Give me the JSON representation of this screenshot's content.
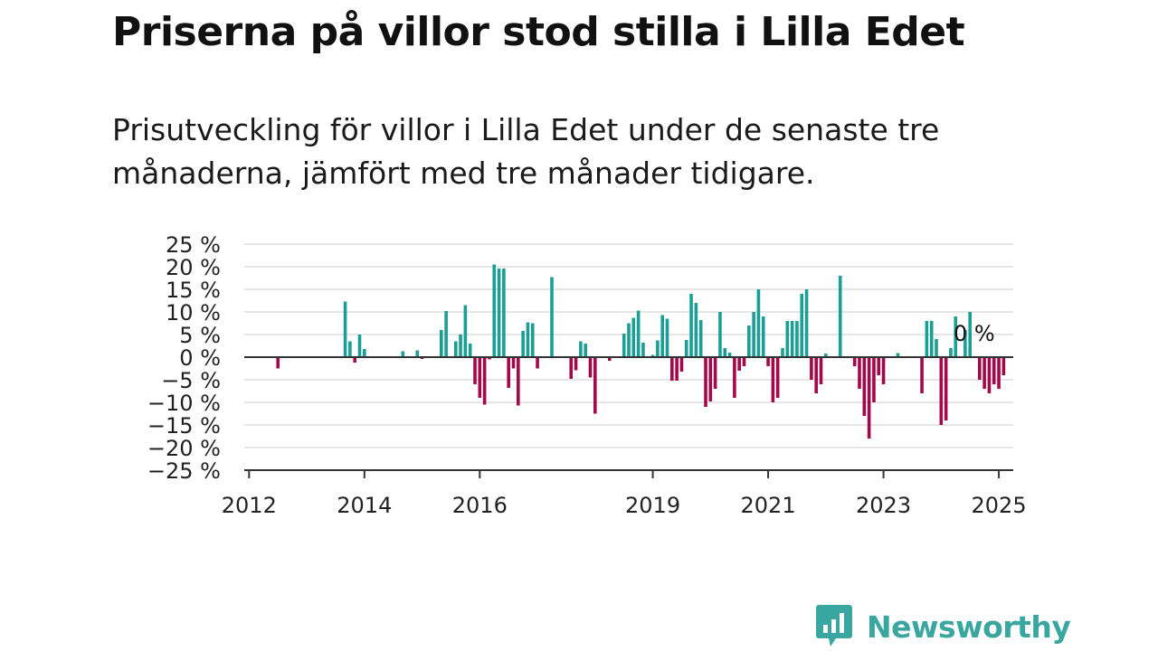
{
  "title": "Priserna på villor stod stilla i Lilla Edet",
  "subtitle": "Prisutveckling för villor i Lilla Edet under de senaste tre månaderna, jämfört med tre månader tidigare.",
  "brand": {
    "name": "Newsworthy"
  },
  "colors": {
    "positive": "#1a9e96",
    "negative": "#a3094a",
    "grid": "#dddddd",
    "axis": "#333333",
    "brand": "#3aa6a0"
  },
  "chart_data": {
    "type": "bar",
    "x_unit": "month",
    "ylim": [
      -25,
      25
    ],
    "yticks": [
      25,
      20,
      15,
      10,
      5,
      0,
      -5,
      -10,
      -15,
      -20,
      -25
    ],
    "ytick_labels": [
      "25 %",
      "20 %",
      "15 %",
      "10 %",
      "5 %",
      "0 %",
      "−5 %",
      "−10 %",
      "−15 %",
      "−20 %",
      "−25 %"
    ],
    "xticks": [
      {
        "label": "2012",
        "date": "2012-01"
      },
      {
        "label": "2014",
        "date": "2014-01"
      },
      {
        "label": "2016",
        "date": "2016-01"
      },
      {
        "label": "2019",
        "date": "2019-01"
      },
      {
        "label": "2021",
        "date": "2021-01"
      },
      {
        "label": "2023",
        "date": "2023-01"
      },
      {
        "label": "2025",
        "date": "2025-01"
      }
    ],
    "x_range": [
      "2011-12",
      "2025-04"
    ],
    "grid": true,
    "end_label": "0 %",
    "series": [
      {
        "points": [
          {
            "date": "2012-07",
            "value": -2.5
          },
          {
            "date": "2013-09",
            "value": 12.3
          },
          {
            "date": "2013-10",
            "value": 3.5
          },
          {
            "date": "2013-11",
            "value": -1.2
          },
          {
            "date": "2013-12",
            "value": 5.0
          },
          {
            "date": "2014-01",
            "value": 1.8
          },
          {
            "date": "2014-09",
            "value": 1.3
          },
          {
            "date": "2014-12",
            "value": 1.5
          },
          {
            "date": "2015-01",
            "value": -0.4
          },
          {
            "date": "2015-05",
            "value": 6.0
          },
          {
            "date": "2015-06",
            "value": 10.2
          },
          {
            "date": "2015-08",
            "value": 3.5
          },
          {
            "date": "2015-09",
            "value": 5.0
          },
          {
            "date": "2015-10",
            "value": 11.5
          },
          {
            "date": "2015-11",
            "value": 3.0
          },
          {
            "date": "2015-12",
            "value": -6.0
          },
          {
            "date": "2016-01",
            "value": -9.0
          },
          {
            "date": "2016-02",
            "value": -10.5
          },
          {
            "date": "2016-03",
            "value": -0.5
          },
          {
            "date": "2016-04",
            "value": 20.5
          },
          {
            "date": "2016-05",
            "value": 19.6
          },
          {
            "date": "2016-06",
            "value": 19.6
          },
          {
            "date": "2016-07",
            "value": -6.8
          },
          {
            "date": "2016-08",
            "value": -2.5
          },
          {
            "date": "2016-09",
            "value": -10.7
          },
          {
            "date": "2016-10",
            "value": 5.8
          },
          {
            "date": "2016-11",
            "value": 7.7
          },
          {
            "date": "2016-12",
            "value": 7.5
          },
          {
            "date": "2017-01",
            "value": -2.5
          },
          {
            "date": "2017-04",
            "value": 17.7
          },
          {
            "date": "2017-08",
            "value": -4.8
          },
          {
            "date": "2017-09",
            "value": -2.9
          },
          {
            "date": "2017-10",
            "value": 3.5
          },
          {
            "date": "2017-11",
            "value": 3.0
          },
          {
            "date": "2017-12",
            "value": -4.5
          },
          {
            "date": "2018-01",
            "value": -12.5
          },
          {
            "date": "2018-04",
            "value": -0.8
          },
          {
            "date": "2018-07",
            "value": 5.2
          },
          {
            "date": "2018-08",
            "value": 7.5
          },
          {
            "date": "2018-09",
            "value": 8.7
          },
          {
            "date": "2018-10",
            "value": 10.3
          },
          {
            "date": "2018-11",
            "value": 3.2
          },
          {
            "date": "2019-01",
            "value": 0.5
          },
          {
            "date": "2019-02",
            "value": 3.7
          },
          {
            "date": "2019-03",
            "value": 9.3
          },
          {
            "date": "2019-04",
            "value": 8.5
          },
          {
            "date": "2019-05",
            "value": -5.2
          },
          {
            "date": "2019-06",
            "value": -5.2
          },
          {
            "date": "2019-07",
            "value": -3.2
          },
          {
            "date": "2019-08",
            "value": 3.8
          },
          {
            "date": "2019-09",
            "value": 14.0
          },
          {
            "date": "2019-10",
            "value": 12.0
          },
          {
            "date": "2019-11",
            "value": 8.2
          },
          {
            "date": "2019-12",
            "value": -11.0
          },
          {
            "date": "2020-01",
            "value": -9.8
          },
          {
            "date": "2020-02",
            "value": -7.0
          },
          {
            "date": "2020-03",
            "value": 10.0
          },
          {
            "date": "2020-04",
            "value": 2.0
          },
          {
            "date": "2020-05",
            "value": 1.0
          },
          {
            "date": "2020-06",
            "value": -9.0
          },
          {
            "date": "2020-07",
            "value": -3.0
          },
          {
            "date": "2020-08",
            "value": -2.0
          },
          {
            "date": "2020-09",
            "value": 7.0
          },
          {
            "date": "2020-10",
            "value": 10.0
          },
          {
            "date": "2020-11",
            "value": 15.0
          },
          {
            "date": "2020-12",
            "value": 9.0
          },
          {
            "date": "2021-01",
            "value": -2.0
          },
          {
            "date": "2021-02",
            "value": -10.0
          },
          {
            "date": "2021-03",
            "value": -9.0
          },
          {
            "date": "2021-04",
            "value": 2.0
          },
          {
            "date": "2021-05",
            "value": 8.0
          },
          {
            "date": "2021-06",
            "value": 8.0
          },
          {
            "date": "2021-07",
            "value": 8.0
          },
          {
            "date": "2021-08",
            "value": 14.0
          },
          {
            "date": "2021-09",
            "value": 15.0
          },
          {
            "date": "2021-10",
            "value": -5.0
          },
          {
            "date": "2021-11",
            "value": -8.0
          },
          {
            "date": "2021-12",
            "value": -6.0
          },
          {
            "date": "2022-01",
            "value": 0.8
          },
          {
            "date": "2022-04",
            "value": 18.0
          },
          {
            "date": "2022-07",
            "value": -2.0
          },
          {
            "date": "2022-08",
            "value": -7.0
          },
          {
            "date": "2022-09",
            "value": -13.0
          },
          {
            "date": "2022-10",
            "value": -18.0
          },
          {
            "date": "2022-11",
            "value": -10.0
          },
          {
            "date": "2022-12",
            "value": -4.0
          },
          {
            "date": "2023-01",
            "value": -6.0
          },
          {
            "date": "2023-04",
            "value": 0.9
          },
          {
            "date": "2023-09",
            "value": -8.0
          },
          {
            "date": "2023-10",
            "value": 8.0
          },
          {
            "date": "2023-11",
            "value": 8.0
          },
          {
            "date": "2023-12",
            "value": 4.0
          },
          {
            "date": "2024-01",
            "value": -15.0
          },
          {
            "date": "2024-02",
            "value": -14.0
          },
          {
            "date": "2024-03",
            "value": 2.0
          },
          {
            "date": "2024-04",
            "value": 9.0
          },
          {
            "date": "2024-06",
            "value": 6.0
          },
          {
            "date": "2024-07",
            "value": 10.0
          },
          {
            "date": "2024-09",
            "value": -5.0
          },
          {
            "date": "2024-10",
            "value": -7.0
          },
          {
            "date": "2024-11",
            "value": -8.0
          },
          {
            "date": "2024-12",
            "value": -6.0
          },
          {
            "date": "2025-01",
            "value": -7.0
          },
          {
            "date": "2025-02",
            "value": -4.0
          }
        ]
      }
    ]
  }
}
